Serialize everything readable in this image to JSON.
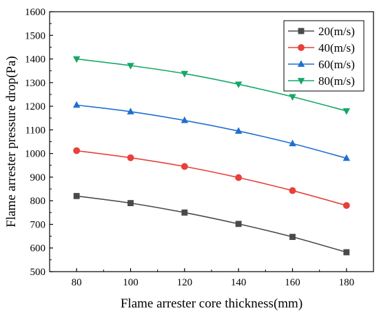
{
  "chart_data": {
    "type": "line",
    "xlabel": "Flame arrester core thickness(mm)",
    "ylabel": "Flame arrester pressure drop(Pa)",
    "xlim": [
      70,
      190
    ],
    "ylim": [
      500,
      1600
    ],
    "xticks": [
      80,
      100,
      120,
      140,
      160,
      180
    ],
    "yticks": [
      500,
      600,
      700,
      800,
      900,
      1000,
      1100,
      1200,
      1300,
      1400,
      1500,
      1600
    ],
    "grid": false,
    "legend_position": "top-right",
    "x": [
      80,
      100,
      120,
      140,
      160,
      180
    ],
    "series": [
      {
        "name": "20(m/s)",
        "marker": "square",
        "color": "#4a4a4a",
        "values": [
          820,
          790,
          750,
          702,
          647,
          582
        ]
      },
      {
        "name": "40(m/s)",
        "marker": "circle",
        "color": "#e8403a",
        "values": [
          1012,
          982,
          945,
          898,
          843,
          780
        ]
      },
      {
        "name": "60(m/s)",
        "marker": "triangle-up",
        "color": "#1f6fd0",
        "values": [
          1205,
          1177,
          1140,
          1095,
          1042,
          980
        ]
      },
      {
        "name": "80(m/s)",
        "marker": "triangle-down",
        "color": "#14a865",
        "values": [
          1400,
          1372,
          1338,
          1293,
          1240,
          1180
        ]
      }
    ]
  }
}
